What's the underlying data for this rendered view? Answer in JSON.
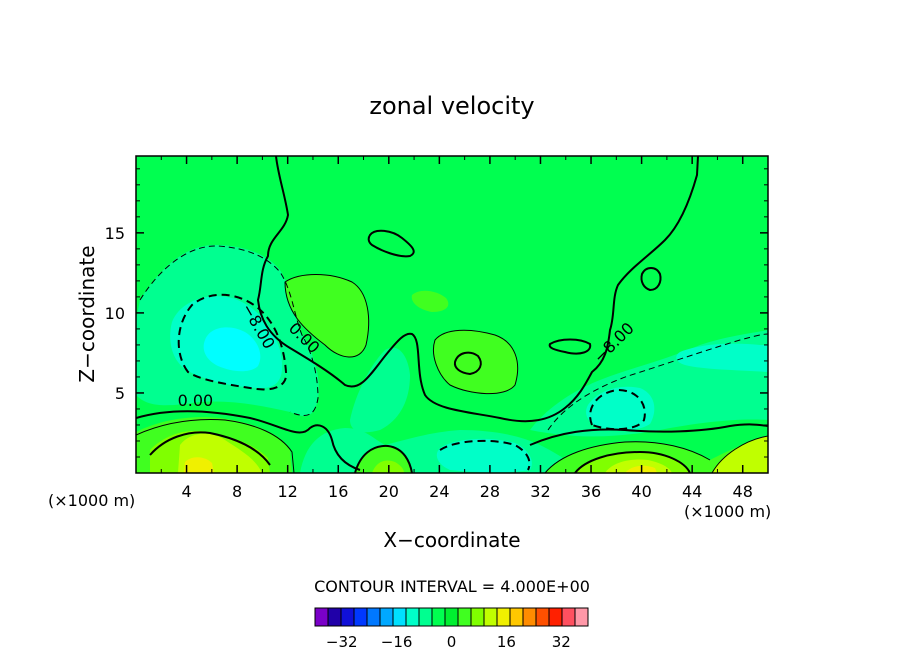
{
  "chart_data": {
    "type": "heatmap",
    "title": "zonal velocity",
    "xlabel": "X−coordinate",
    "ylabel": "Z−coordinate",
    "x_unit_left": "(×1000 m)",
    "x_unit_right": "(×1000 m)",
    "xlim": [
      0,
      50
    ],
    "ylim": [
      0,
      19.8
    ],
    "x_ticks": [
      4,
      8,
      12,
      16,
      20,
      24,
      28,
      32,
      36,
      40,
      44,
      48
    ],
    "y_ticks": [
      5,
      10,
      15
    ],
    "contour_interval_label": "CONTOUR INTERVAL = 4.000E+00",
    "contour_interval": 4,
    "contour_labels": [
      {
        "text": "0.00",
        "x": 4.7,
        "y": 4.2
      },
      {
        "text": "0.00",
        "x": 13.0,
        "y": 8.2
      },
      {
        "text": "−8.00",
        "x": 9.3,
        "y": 9.0
      },
      {
        "text": "−8.00",
        "x": 38.1,
        "y": 7.9
      }
    ],
    "colorbar": {
      "levels": [
        -36,
        -32,
        -28,
        -24,
        -20,
        -16,
        -12,
        -8,
        -4,
        0,
        4,
        8,
        12,
        16,
        20,
        24,
        28,
        32,
        36
      ],
      "colors": [
        "#7a00c8",
        "#2000a8",
        "#1010d8",
        "#0038ff",
        "#0078ff",
        "#00a8ff",
        "#00e0ff",
        "#00ffc8",
        "#00ff90",
        "#00ff50",
        "#00f030",
        "#40ff20",
        "#80ff00",
        "#c0ff00",
        "#f0f000",
        "#ffc800",
        "#ff8c00",
        "#ff5000",
        "#ff2000",
        "#ff5060",
        "#ff98a8"
      ],
      "tick_labels": [
        "−32",
        "−16",
        "0",
        "16",
        "32"
      ],
      "tick_values": [
        -32,
        -16,
        0,
        16,
        32
      ]
    }
  }
}
